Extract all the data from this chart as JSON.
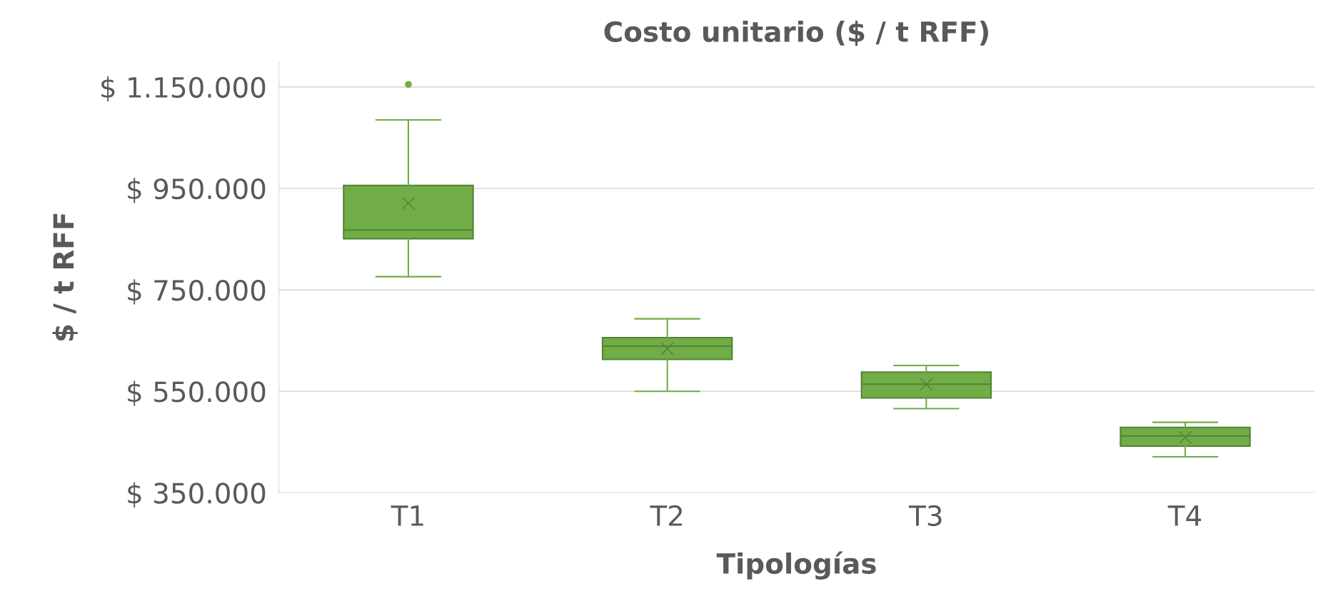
{
  "chart_data": {
    "type": "box",
    "title": "Costo unitario ($ / t RFF)",
    "xlabel": "Tipologías",
    "ylabel": "$ / t RFF",
    "categories": [
      "T1",
      "T2",
      "T3",
      "T4"
    ],
    "series": [
      {
        "color": "#70ad47",
        "boxes": [
          {
            "low": 776000,
            "q1": 851000,
            "median": 868000,
            "q3": 956000,
            "high": 1085000,
            "mean": 921000,
            "outliers": [
              1155000
            ]
          },
          {
            "low": 550000,
            "q1": 613000,
            "median": 639000,
            "q3": 656000,
            "high": 693000,
            "mean": 634000
          },
          {
            "low": 516000,
            "q1": 537000,
            "median": 564000,
            "q3": 588000,
            "high": 601000,
            "mean": 564000
          },
          {
            "low": 421000,
            "q1": 442000,
            "median": 462000,
            "q3": 479000,
            "high": 489000,
            "mean": 459000
          }
        ]
      }
    ],
    "ylim": [
      350000,
      1200000
    ],
    "yticks": [
      {
        "value": 350000,
        "label": "$ 350.000"
      },
      {
        "value": 550000,
        "label": "$ 550.000"
      },
      {
        "value": 750000,
        "label": "$ 750.000"
      },
      {
        "value": 950000,
        "label": "$ 950.000"
      },
      {
        "value": 1150000,
        "label": "$ 1.150.000"
      }
    ],
    "grid": "y",
    "legend": false
  }
}
